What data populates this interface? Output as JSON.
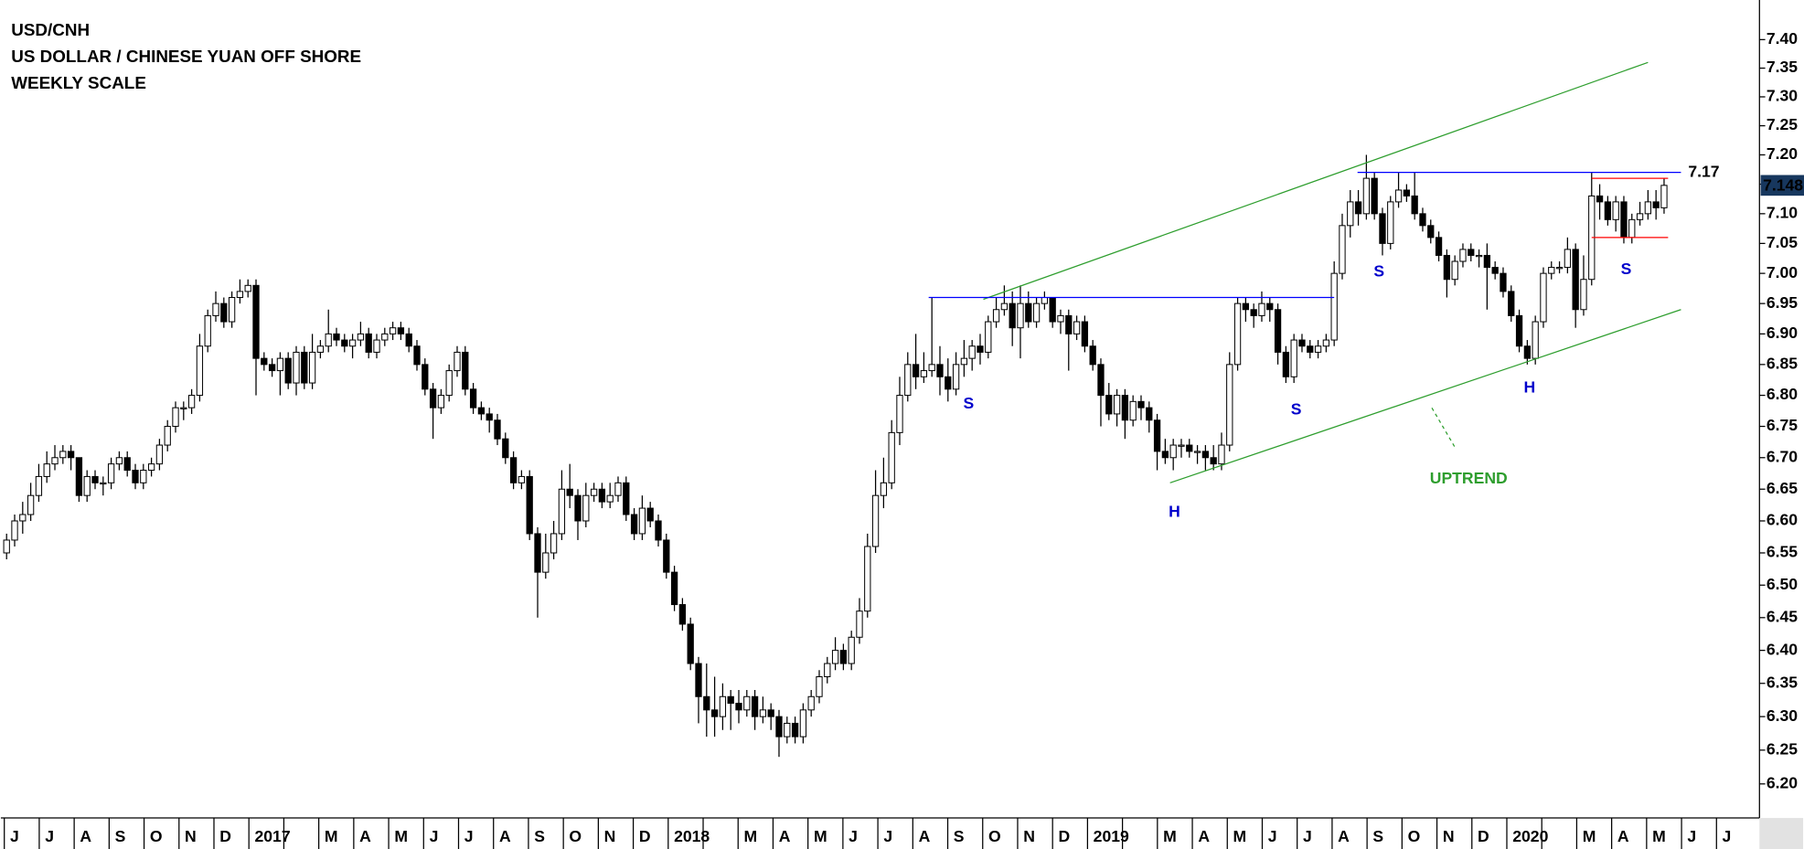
{
  "chart_data": {
    "type": "candlestick",
    "title": "USD/CNH",
    "subtitle": "US DOLLAR / CHINESE YUAN OFF SHORE",
    "scale_label": "WEEKLY SCALE",
    "categories": [
      "J",
      "J",
      "A",
      "S",
      "O",
      "N",
      "D",
      "2017",
      null,
      "M",
      "A",
      "M",
      "J",
      "J",
      "A",
      "S",
      "O",
      "N",
      "D",
      "2018",
      null,
      "M",
      "A",
      "M",
      "J",
      "J",
      "A",
      "S",
      "O",
      "N",
      "D",
      "2019",
      null,
      "M",
      "A",
      "M",
      "J",
      "J",
      "A",
      "S",
      "O",
      "N",
      "D",
      "2020",
      null,
      "M",
      "A",
      "M",
      "J",
      "J"
    ],
    "log_scale": true,
    "ylim": [
      6.15,
      7.47
    ],
    "yticks": [
      {
        "value": 6.2,
        "label": "6.20"
      },
      6.25,
      {
        "value": 6.3,
        "label": "6.30"
      },
      6.35,
      {
        "value": 6.4,
        "label": "6.40"
      },
      6.45,
      {
        "value": 6.5,
        "label": "6.50"
      },
      6.55,
      {
        "value": 6.6,
        "label": "6.60"
      },
      6.65,
      {
        "value": 6.7,
        "label": "6.70"
      },
      6.75,
      {
        "value": 6.8,
        "label": "6.80"
      },
      6.85,
      {
        "value": 6.9,
        "label": "6.90"
      },
      6.95,
      {
        "value": 7.0,
        "label": "7.00"
      },
      7.05,
      {
        "value": 7.1,
        "label": "7.10"
      },
      7.15,
      {
        "value": 7.2,
        "label": "7.20"
      },
      7.25,
      {
        "value": 7.3,
        "label": "7.30"
      },
      7.35,
      {
        "value": 7.4,
        "label": "7.40"
      }
    ],
    "up_color": "#ffffff",
    "down_color": "#000000",
    "open": [
      6.55,
      6.57,
      6.6,
      6.61,
      6.64,
      6.67,
      6.69,
      6.7,
      6.71,
      6.7,
      6.64,
      6.67,
      6.66,
      6.66,
      6.69,
      6.7,
      6.68,
      6.66,
      6.68,
      6.69,
      6.72,
      6.75,
      6.78,
      6.78,
      6.8,
      6.88,
      6.93,
      6.95,
      6.92,
      6.96,
      6.97,
      6.98,
      6.86,
      6.85,
      6.84,
      6.86,
      6.82,
      6.87,
      6.82,
      6.87,
      6.88,
      6.9,
      6.89,
      6.88,
      6.89,
      6.9,
      6.87,
      6.89,
      6.9,
      6.91,
      6.9,
      6.88,
      6.85,
      6.81,
      6.78,
      6.8,
      6.84,
      6.87,
      6.81,
      6.78,
      6.77,
      6.76,
      6.73,
      6.7,
      6.66,
      6.67,
      6.58,
      6.52,
      6.55,
      6.58,
      6.65,
      6.64,
      6.6,
      6.64,
      6.65,
      6.63,
      6.64,
      6.66,
      6.61,
      6.58,
      6.62,
      6.6,
      6.57,
      6.52,
      6.47,
      6.44,
      6.38,
      6.33,
      6.31,
      6.3,
      6.33,
      6.32,
      6.31,
      6.33,
      6.3,
      6.31,
      6.3,
      6.27,
      6.29,
      6.27,
      6.31,
      6.33,
      6.36,
      6.38,
      6.4,
      6.38,
      6.42,
      6.46,
      6.56,
      6.64,
      6.66,
      6.74,
      6.8,
      6.85,
      6.83,
      6.84,
      6.85,
      6.83,
      6.81,
      6.85,
      6.86,
      6.88,
      6.87,
      6.92,
      6.94,
      6.95,
      6.91,
      6.95,
      6.92,
      6.95,
      6.96,
      6.92,
      6.93,
      6.9,
      6.92,
      6.88,
      6.85,
      6.8,
      6.77,
      6.8,
      6.76,
      6.79,
      6.78,
      6.76,
      6.71,
      6.7,
      6.72,
      6.72,
      6.71,
      6.71,
      6.7,
      6.69,
      6.72,
      6.85,
      6.95,
      6.94,
      6.93,
      6.95,
      6.94,
      6.87,
      6.83,
      6.89,
      6.88,
      6.87,
      6.88,
      6.89,
      7.0,
      7.08,
      7.12,
      7.1,
      7.16,
      7.1,
      7.05,
      7.12,
      7.14,
      7.13,
      7.1,
      7.08,
      7.06,
      7.03,
      6.99,
      7.02,
      7.04,
      7.03,
      7.03,
      7.01,
      7.0,
      6.97,
      6.93,
      6.88,
      6.86,
      6.92,
      7.0,
      7.01,
      7.01,
      7.04,
      6.94,
      6.99,
      7.13,
      7.12,
      7.09,
      7.12,
      7.06,
      7.09,
      7.1,
      7.12,
      7.11
    ],
    "high": [
      6.58,
      6.61,
      6.63,
      6.66,
      6.69,
      6.71,
      6.72,
      6.72,
      6.72,
      6.7,
      6.68,
      6.68,
      6.67,
      6.7,
      6.71,
      6.71,
      6.69,
      6.69,
      6.7,
      6.73,
      6.76,
      6.79,
      6.79,
      6.81,
      6.9,
      6.94,
      6.97,
      6.96,
      6.97,
      6.99,
      6.99,
      6.99,
      6.87,
      6.86,
      6.87,
      6.87,
      6.88,
      6.88,
      6.9,
      6.89,
      6.94,
      6.91,
      6.9,
      6.9,
      6.92,
      6.91,
      6.9,
      6.91,
      6.92,
      6.92,
      6.91,
      6.89,
      6.86,
      6.82,
      6.81,
      6.85,
      6.88,
      6.88,
      6.82,
      6.79,
      6.78,
      6.77,
      6.74,
      6.71,
      6.68,
      6.68,
      6.59,
      6.58,
      6.6,
      6.68,
      6.69,
      6.65,
      6.66,
      6.66,
      6.66,
      6.66,
      6.67,
      6.67,
      6.62,
      6.64,
      6.63,
      6.61,
      6.58,
      6.53,
      6.48,
      6.45,
      6.39,
      6.38,
      6.36,
      6.35,
      6.34,
      6.34,
      6.34,
      6.34,
      6.33,
      6.32,
      6.31,
      6.3,
      6.3,
      6.32,
      6.34,
      6.37,
      6.39,
      6.42,
      6.41,
      6.43,
      6.48,
      6.58,
      6.68,
      6.7,
      6.76,
      6.83,
      6.87,
      6.9,
      6.87,
      6.96,
      6.88,
      6.86,
      6.87,
      6.89,
      6.89,
      6.9,
      6.93,
      6.96,
      6.98,
      6.97,
      6.98,
      6.97,
      6.96,
      6.97,
      6.96,
      6.94,
      6.94,
      6.93,
      6.93,
      6.89,
      6.86,
      6.82,
      6.81,
      6.81,
      6.8,
      6.8,
      6.79,
      6.77,
      6.73,
      6.73,
      6.73,
      6.73,
      6.72,
      6.72,
      6.72,
      6.74,
      6.87,
      6.96,
      6.96,
      6.95,
      6.97,
      6.96,
      6.95,
      6.88,
      6.9,
      6.9,
      6.89,
      6.89,
      6.9,
      7.02,
      7.1,
      7.14,
      7.14,
      7.2,
      7.17,
      7.11,
      7.13,
      7.17,
      7.15,
      7.17,
      7.11,
      7.09,
      7.07,
      7.04,
      7.03,
      7.05,
      7.05,
      7.04,
      7.05,
      7.02,
      7.01,
      6.98,
      6.94,
      6.89,
      6.93,
      7.01,
      7.02,
      7.02,
      7.06,
      7.05,
      7.03,
      7.17,
      7.15,
      7.13,
      7.13,
      7.13,
      7.1,
      7.12,
      7.14,
      7.14,
      7.16
    ],
    "low": [
      6.54,
      6.56,
      6.58,
      6.6,
      6.63,
      6.66,
      6.68,
      6.69,
      6.68,
      6.63,
      6.63,
      6.65,
      6.64,
      6.65,
      6.68,
      6.67,
      6.65,
      6.65,
      6.67,
      6.68,
      6.71,
      6.74,
      6.76,
      6.77,
      6.79,
      6.87,
      6.92,
      6.91,
      6.91,
      6.95,
      6.96,
      6.8,
      6.84,
      6.83,
      6.8,
      6.81,
      6.8,
      6.81,
      6.81,
      6.86,
      6.87,
      6.88,
      6.87,
      6.86,
      6.88,
      6.86,
      6.86,
      6.88,
      6.89,
      6.89,
      6.87,
      6.84,
      6.8,
      6.73,
      6.77,
      6.79,
      6.83,
      6.8,
      6.77,
      6.76,
      6.74,
      6.72,
      6.69,
      6.65,
      6.65,
      6.57,
      6.45,
      6.51,
      6.54,
      6.57,
      6.62,
      6.57,
      6.59,
      6.63,
      6.62,
      6.62,
      6.63,
      6.6,
      6.57,
      6.57,
      6.59,
      6.56,
      6.51,
      6.46,
      6.43,
      6.37,
      6.29,
      6.27,
      6.27,
      6.28,
      6.28,
      6.29,
      6.3,
      6.28,
      6.29,
      6.28,
      6.24,
      6.26,
      6.26,
      6.26,
      6.3,
      6.32,
      6.35,
      6.37,
      6.37,
      6.37,
      6.41,
      6.45,
      6.55,
      6.62,
      6.65,
      6.72,
      6.79,
      6.81,
      6.82,
      6.83,
      6.8,
      6.79,
      6.8,
      6.83,
      6.84,
      6.85,
      6.86,
      6.91,
      6.93,
      6.88,
      6.86,
      6.91,
      6.91,
      6.94,
      6.91,
      6.9,
      6.84,
      6.89,
      6.87,
      6.84,
      6.75,
      6.76,
      6.75,
      6.73,
      6.75,
      6.76,
      6.74,
      6.68,
      6.69,
      6.68,
      6.7,
      6.7,
      6.69,
      6.68,
      6.68,
      6.68,
      6.71,
      6.84,
      6.92,
      6.91,
      6.92,
      6.92,
      6.85,
      6.82,
      6.82,
      6.87,
      6.86,
      6.86,
      6.87,
      6.88,
      6.99,
      7.06,
      7.08,
      7.09,
      7.09,
      7.03,
      7.04,
      7.11,
      7.12,
      7.09,
      7.07,
      7.05,
      7.02,
      6.96,
      6.98,
      7.01,
      7.02,
      7.01,
      6.94,
      6.99,
      6.96,
      6.92,
      6.87,
      6.85,
      6.85,
      6.91,
      6.99,
      7.0,
      7.0,
      6.91,
      6.93,
      6.98,
      7.09,
      7.08,
      7.07,
      7.05,
      7.05,
      7.08,
      7.09,
      7.09,
      7.1
    ],
    "close": [
      6.57,
      6.6,
      6.61,
      6.64,
      6.67,
      6.69,
      6.7,
      6.71,
      6.7,
      6.64,
      6.67,
      6.66,
      6.66,
      6.69,
      6.7,
      6.68,
      6.66,
      6.68,
      6.69,
      6.72,
      6.75,
      6.78,
      6.78,
      6.8,
      6.88,
      6.93,
      6.95,
      6.92,
      6.96,
      6.97,
      6.98,
      6.86,
      6.85,
      6.84,
      6.86,
      6.82,
      6.87,
      6.82,
      6.87,
      6.88,
      6.9,
      6.89,
      6.88,
      6.89,
      6.9,
      6.87,
      6.89,
      6.9,
      6.91,
      6.9,
      6.88,
      6.85,
      6.81,
      6.78,
      6.8,
      6.84,
      6.87,
      6.81,
      6.78,
      6.77,
      6.76,
      6.73,
      6.7,
      6.66,
      6.67,
      6.58,
      6.52,
      6.55,
      6.58,
      6.65,
      6.64,
      6.6,
      6.64,
      6.65,
      6.63,
      6.64,
      6.66,
      6.61,
      6.58,
      6.62,
      6.6,
      6.57,
      6.52,
      6.47,
      6.44,
      6.38,
      6.33,
      6.31,
      6.3,
      6.33,
      6.32,
      6.31,
      6.33,
      6.3,
      6.31,
      6.3,
      6.27,
      6.29,
      6.27,
      6.31,
      6.33,
      6.36,
      6.38,
      6.4,
      6.38,
      6.42,
      6.46,
      6.56,
      6.64,
      6.66,
      6.74,
      6.8,
      6.85,
      6.83,
      6.84,
      6.85,
      6.83,
      6.81,
      6.85,
      6.86,
      6.88,
      6.87,
      6.92,
      6.94,
      6.95,
      6.91,
      6.95,
      6.92,
      6.95,
      6.96,
      6.92,
      6.93,
      6.9,
      6.92,
      6.88,
      6.85,
      6.8,
      6.77,
      6.8,
      6.76,
      6.79,
      6.78,
      6.76,
      6.71,
      6.7,
      6.72,
      6.72,
      6.71,
      6.71,
      6.7,
      6.69,
      6.72,
      6.85,
      6.95,
      6.94,
      6.93,
      6.95,
      6.94,
      6.87,
      6.83,
      6.89,
      6.88,
      6.87,
      6.88,
      6.89,
      7.0,
      7.08,
      7.12,
      7.1,
      7.16,
      7.1,
      7.05,
      7.12,
      7.14,
      7.13,
      7.1,
      7.08,
      7.06,
      7.03,
      6.99,
      7.02,
      7.04,
      7.03,
      7.03,
      7.01,
      7.0,
      6.97,
      6.93,
      6.88,
      6.86,
      6.92,
      7.0,
      7.01,
      7.01,
      7.04,
      6.94,
      6.99,
      7.13,
      7.12,
      7.09,
      7.12,
      7.06,
      7.09,
      7.1,
      7.12,
      7.11,
      7.148
    ],
    "last_price_color": "#17375e",
    "channel": {
      "color": "#2e9e2e",
      "upper": {
        "x": [
          121.4,
          204
        ],
        "y": [
          6.957,
          7.36
        ]
      },
      "lower": {
        "x": [
          144.6,
          208.1
        ],
        "y": [
          6.66,
          6.94
        ]
      }
    },
    "neckline": {
      "value": 6.96,
      "x": [
        114.6,
        165
      ],
      "color": "#0000ff"
    },
    "resistance": {
      "value": 7.17,
      "x": [
        167.9,
        208.1
      ],
      "color": "#0000ff"
    },
    "range": {
      "values": [
        7.16,
        7.06
      ],
      "x": [
        197,
        206.5
      ],
      "color": "#ff0000"
    },
    "pattern_labels": [
      "S",
      "H",
      "S",
      "S",
      "H",
      "S"
    ],
    "trend_label": "UPTREND"
  }
}
